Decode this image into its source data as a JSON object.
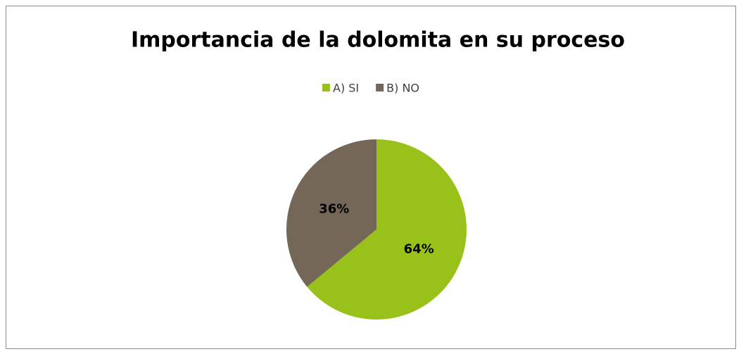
{
  "chart_data": {
    "type": "pie",
    "title": "Importancia de la dolomita en su proceso",
    "categories": [
      "A) SI",
      "B) NO"
    ],
    "values": [
      64,
      36
    ],
    "value_labels": [
      "64%",
      "36%"
    ],
    "colors": [
      "#98c21a",
      "#756758"
    ],
    "legend": "top"
  }
}
